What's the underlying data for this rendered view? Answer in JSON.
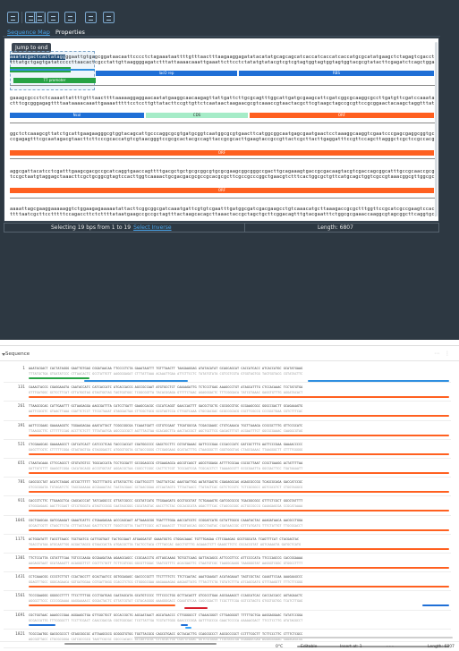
{
  "toolbar": {
    "buttons": [
      "view-icon",
      "circular-map-icon",
      "linear-map-icon",
      "sequence-icon",
      "settings-icon",
      "export-icon",
      "refresh-icon"
    ]
  },
  "tabs": {
    "active": "Sequence Map",
    "other": "Properties"
  },
  "jump_button": "Jump to end",
  "sequence_rows": [
    {
      "top": "aaatacgactcactataggggaattgtgagcggataacaattcccctctagaaataattttgtttaactttaagaaggagatatacatatgcagcagcatcaccatcaccatcaccatgcgcatatgaagctctagagtcgacctgcaggcatgcaagcttggctg",
      "bottom": "tttatgctgagtgatatccccttaacactcgcctattgttaaggggagatctttattaaaacaaattgaaattcttcctctatatgtatacgtcgtcgtagtggtagtggtagtggtacgcgtatacttcgagatctcagctggacgtccgtacgttcgaaccgac"
    },
    {
      "top": "gaaagcgccctctcaaaattattttgtttaacttttaaaaaggaggaacaatatgaaggcaacaagagttattgattcttgcgcagtttggcattgatgcgaagcattcgatcggcgcaaggcgccttgatgttcgatccaaatatcgacggtcgag",
      "bottom": "ctttcgcgggagagttttaataaaacaaattgaaaatttttcctccttgttatacttccgttgttctcaataactaagaacgcgtcaaaccgtaactacgcttcgtaagctagccgcgttccgcggaactacaagctaggtttatagctgccagctc"
    },
    {
      "top": "ggctctcaaagcgttatctgcattgaagaagggcgtggtacagcattgcccaggcgcgtgatgcggtcaatggcgcgtgaacttcatggcggcaatgagcgaatgaactcctaaaggcaaggtcgaatcccgagcgaggcggtgcaatggtgccaa",
      "bottom": "ccgagagtttcgcaatagacgtaacttcttcccgcaccatgtcgtaacgggtccgcgcactacgccagttaccgcgcacttgaagtaccgccgttactcgcttacttgaggatttccgttccagcttagggctcgctccgccacgttaccacggtt"
    },
    {
      "top": "aggcgattacatcctcgatttgaagcgacgccgcatcaggtgaaccagttttgacgctgctgcgcggcgtgcgcgaagcggcgggccgacttgcagaaagtgaccgcgacaagtacgtcgaccagcggcatttgccgcaaccgcggcgcgtcatg",
      "bottom": "tccgctaatgtaggagctaaacttcgctgcggcgtagtccacttggtcaaaactgcgacgacgcgccgcacgcgcttcgccgcccggctgaacgtctttcactggcgctgttcatgcagctggtcgccgtaaacggcgttggcgccgcgcagtac"
    },
    {
      "top": "aaaattagcgaaggaaaaaggtctggaagagaaaaatattacttcggcggcgatcaaatgattcgtgtcgaatttgatggcgatcgacgaagcctgtcaaacatgcttaaagaccgcgctttggttccgcatcgccgaagtccacgcatgaagtcat",
      "bottom": "ttttaatcgcttcctttttccagaccttctcttttataatgaagccgccgctagtttactaagcacagcttaaactaccgctagctgcttcggacagtttgtacgaatttctggcgcgaaaccaaggcgtagcggcttcaggtgcgtacttcagta"
    }
  ],
  "features": [
    {
      "name": "T7 promoter",
      "color": "#27a344"
    },
    {
      "name": "lacO rep",
      "color": "#1f6fd6"
    },
    {
      "name": "RBS",
      "color": "#1f6fd6"
    },
    {
      "name": "Ncol",
      "color": "#1f6fd6"
    },
    {
      "name": "RBS",
      "color": "#1f6fd6"
    },
    {
      "name": "ORF",
      "color": "#ff6020"
    },
    {
      "name": "CDS",
      "color": "#a6ecc8"
    }
  ],
  "status": {
    "selecting": "Selecting 19 bps from 1 to 19",
    "select_inverse": "Select Inverse",
    "length": "Length: 6807"
  },
  "lower": {
    "title": "Sequence",
    "row_numbers": [
      "1",
      "131",
      "261",
      "391",
      "521",
      "651",
      "781",
      "911",
      "1041",
      "1171",
      "1301",
      "1431",
      "1561",
      "1691",
      "1821"
    ],
    "rows": [
      {
        "top": "AAATACGACT CACTATAGGG GAATTGTGAG CGGATAACAA TTCCCCTCTA GAAATAATTT TGTTTAACTT TAAGAAGGAG ATATACATAT GCAGCAGCAT CACCATCACC ATCACCATGC GCATATGAAG",
        "bottom": "TTTATGCTGA GTGATATCCC CTTAACACTC GCCTATTGTT AAGGGGAGAT CTTTATTAAA ACAAATTGAA ATTCTTCCTC TATATGTATA CGTCGTCGTA GTGGTAGTGG TAGTGGTACG CGTATACTTC"
      },
      {
        "top": "CAAACTACCG CGAGGAAGTA CAATACCATC CATCACCATC ATCACCACCG AGCCGCCAAT ATGTGCCTCT CAAAAGATTG TCTCCCTGAG AAAGCCCTGT ATAGCATTTG CTCCACAAAC TCCTATGTGA",
        "bottom": "GTTTGATGGC GCTCCTTCAT GTTATGGTAG GTAGTGGTAG TAGTGGTGGC TCGGCGGTTA TACACGGAGA GTTTTCTAAC AGAGGGACTC TTTCGGGACA TATCGTAAAC GAGGTGTTTG AGGATACACT"
      },
      {
        "top": "TTAAGCGCAG CATTGAATTT GCTAAGAGGA AAGCGATTTA CATCCTGATT GAAGCGACGC CGCATCAGGT GAACCAGTTT GACGCTGCTG CGCGGCGTGC GCGAAGCGGC GGGCCGACTT GCAGAAAGTG",
        "bottom": "AATTCGCGTC GTAACTTAAA CGATTCTCCT TTCGCTAAAT GTAGGACTAA CTTCGCTGCG GCGTAGTCCA CTTGGTCAAA CTGCGACGAC GCGCCGCACG CGCTTCGCCG CCCGGCTGAA CGTCTTTCAC"
      },
      {
        "top": "AATTCCGAAG GAAAAAGGTC TGGAAGAGAA AAATATTACT TCGGCGGCGA TCAAATGATT CGTGTCGAAT TTGATGGCGA TCGACGAAGC CTGTCAAACA TGCTTAAAGA CCGCGCTTTG GTTCCGCATC",
        "bottom": "TTAAGGCTTC CTTTTTCCAG ACCTTCTCTT TTTATAATGA AGCCGCCGCT AGTTTACTAA GCACAGCTTA AACTACCGCT AGCTGCTTCG GACAGTTTGT ACGAATTTCT GGCGCGAAAC CAAGGCGTAG"
      },
      {
        "top": "CTCGAAGCAG GAAAAAGCCT CATCATCACT CATCCCTCAG TACCCACCAT CGATGGCCCC GAGCTCCTTC CGTATGAAAC GATTCCCGAA CCCACCCATC GATCGCTTTG AATTCCCGAA GAAAACCCCC",
        "bottom": "GAGCTTCGTC CTTTTTCGGA GTAGTAGTGA GTAGGGAGTC ATGGGTGGTA GCTACCGGGG CTCGAGGAAG GCATACTTTG CTAAGGGCTT GGGTGGGTAG CTAGCGAAAC TTAAGGGCTT CTTTTGGGGG"
      },
      {
        "top": "CTAATACAAA CTTCCAGCCT GTGTATGTCC TGGCACCATA TCCTGCGATT GCCGGAGCCG GTGAAGAGCA AGCGTCAGCT AGCGTGGAGA ATTTTCGCAA CGCGCTTAAT CCGCTGAAGG ACTATTTTAA",
        "bottom": "GATTATGTTT GAAGGTCGGA CACATACAGG ACCGTGGTAT AGGACGCTAA CGGCCTCGGC CACTTCTCGT TCGCAGTCGA TCGCACCTCT TAAAAGCGTT GCGCGAATTA GGCGACTTCC TGATAAAATT"
      },
      {
        "top": "CAGCGCCTAT ACATCTAGAG ATCGCTTTTT TGCTTTTATG ATTATGCTTG CGATTGCCTT TAGTTATCAC AAATGATTGG AATATGAGTG CGAGAGGCAG AGAGCGCCGG TCAGCGCAGA GACCATCCGC",
        "bottom": "GTCGCGGATA TGTAGATCTC TAGCGAAAAA ACGAAAATAC TAATACGAAC GCTAACGGAA ATCAATAGTG TTTACTAACC TTATACTCAC GCTCTCCGTC TCTCGCGGCC AGTCGCGTCT CTGGTAGGCG"
      },
      {
        "top": "CACCCTCTTC TTGAAGCTCA CAGCACCCAT TATCAGGCCC GTTATCGCCC GCGTATCATG TTGGAAGATG GCGTGCGTAT TCTGAAAGTG GATCGCGCCG TGACGGCGGC GTTTCTCGCT GGCGTATTTT",
        "bottom": "GTGGGAGAAG AACTTCGAGT GTCGTGGGTA ATAGTCCGGG CAATAGCGGG CGCATAGTAC AACCTTCTAC CGCACGCATA AGACTTTCAC CTAGCGCGGC ACTGCCGCCG CAAAGAGCGA CCGCATAAAA"
      },
      {
        "top": "CGCTGAGCAA GATCGAAGAT GAAATCATTC CTGAAGAGAA ACCCAGCAAT ATTAAAGCGG TGATTTTGGA AACCATCGTC CCGGATCATG GCTATTGGCG CAAATACTAC AAAGATAACA AACGCCTGGA",
        "bottom": "GCGACTCGTT CTAGCTTCTA CTTTAGTAAG GACTTCTCTT TGGGTCGTTA TAATTTCGCC ACTAAAACCT TTGGTAGCAG GGCCTAGTAC CGATAACCGC GTTTATGATG TTTCTATTGT TTGCGGACCT"
      },
      {
        "top": "ACTGGATATT TACGTTAACC TGCTGATCG CATTGGTGAT TACTGCGAAT ATGAGGATGT GAAATGGTG CTGGACAAAC TGTTTGAGAA CTTCGAAGAG GCGTGGCATA TCAGTTTCAT CTACGAGTAC",
        "bottom": "TGACCTATAA ATGCAATTGG ACGACTAGCG GTAACCACTA ATGACGCTTA TACTCCTACA CTTTACCAC GACCTGTTTG ACAAACTCTT GAAGCTTCTC CGCACCGTAT AGTCAAAGTA GATGCTCATG"
      },
      {
        "top": "TTCTCCATTA CGTATTTCAA TGTCCCAAGA GCGAAGATAA AGAAGCAGCC CCGCAACCTG ATTAGCAAAG TGTGCTCAAG GATTACAGCG ATTCCGTTCC ATTCCCCATA TTCCCAGCCG CACCGGAAAA",
        "bottom": "AAGAGGTAAT GCATAAAGTT ACAGGGTTCT CGCTTCTATT TCTTCGTCGG GGCGTTGGAC TAATCGTTTC ACACGAGTTC CTAATGTCGC TAAGGCAAGG TAAGGGGTAT AAGGGTCGGC GTGGCCTTTT"
      },
      {
        "top": "CCTCAAACGG CCCGTCTTGT CCACTACCTT GCACTAATCC GGTGGAGAGC GACCCCGCTT TTCTTTTCTC TTCTCAATAC AAATGAAGAT ACATAGAAAT TAGTCGCTAC CAAATTCCAA AAAGAAGCCC",
        "bottom": "GGAGTTTGCC GGGCAGAACA GGTGATGGAA CGTGATTAGG CCACCTCTCG CTGGGGCGAA AAGAAAAGAG AAGAGTTATG TTTACTTCTA TGTATCTTTA ATCAGCGATG GTTTAAGGTT TTTCTTCGGG"
      },
      {
        "top": "TCCCGAAGGG GGGGCCTTTT TTCCTTTTGG CCCTGATGAG CAATAGCATA GCATGTCCCC TTTCCCCTGG GCTTACAGTT GTCGCCTGAA AGCGAAAGCT CCAGCATCAC CACCACCACC AGTAGAACTC",
        "bottom": "AGGGCTTCCC CCCCGGAAAA AAGGAAAACC GGGACTACTC GTTATCGTAT CGTACAGGGG AAAGGGGACC CGAATGTCAA CAGCGGACTT TCGCTTTCGA GGTCGTAGTG GTGGTGGTGG TCATCTTGAG"
      },
      {
        "top": "CGCTGGTAAC AAAGCCCGAA AGGAAGCTGA GTTGGCTGCT GCCACCGCTG AGCAATAACT AGCATAACCC CTTGGGGCCT CTAAACGGGT CTTGAGGGGT TTTTTGCTGA AAGGAGGAAC TATATCCGGA",
        "bottom": "GCGACCATTG TTTCGGGCTT TCCTTCGACT CAACCGACGA CGGTGGCGAC TCGTTATTGA TCGTATTGGG GAACCCCGGA GATTTGCCCA GAACTCCCCA AAAAACGACT TTCCTCCTTG ATATAGGCCT"
      },
      {
        "top": "TCGCCAATGG GACGCGCCCT GTAGCGGCGC ATTAAGCGCG GCGGGTGTGG TGGTTACGCG CAGCGTGACC GCTACACTTG CCAGCGCCCT AGCGCCCGCT CCTTTCGCTT TCTTCCCTTC CTTTCTCGCC",
        "bottom": "AGCGGTTACC CTGCGCGGGA CATCGCCGCG TAATTCGCGC CGCCCACACC ACCAATGCGC GTCGCACTGG CGATGTGAAC GGTCGCGGGA TCGCGGGCGA GGAAAGCGAA AGAAGGGAAG GAAAGAGCGG"
      }
    ],
    "status": {
      "temp": "0°C",
      "mode": "Editable",
      "insert": "Insert at: 1",
      "dots": "- - -",
      "length": "Length: 6807"
    }
  },
  "colors": {
    "panel_bg": "#2d3842",
    "accent": "#4aa3e8",
    "orf": "#ff6020",
    "promoter": "#27a344",
    "rbs": "#1f6fd6"
  }
}
